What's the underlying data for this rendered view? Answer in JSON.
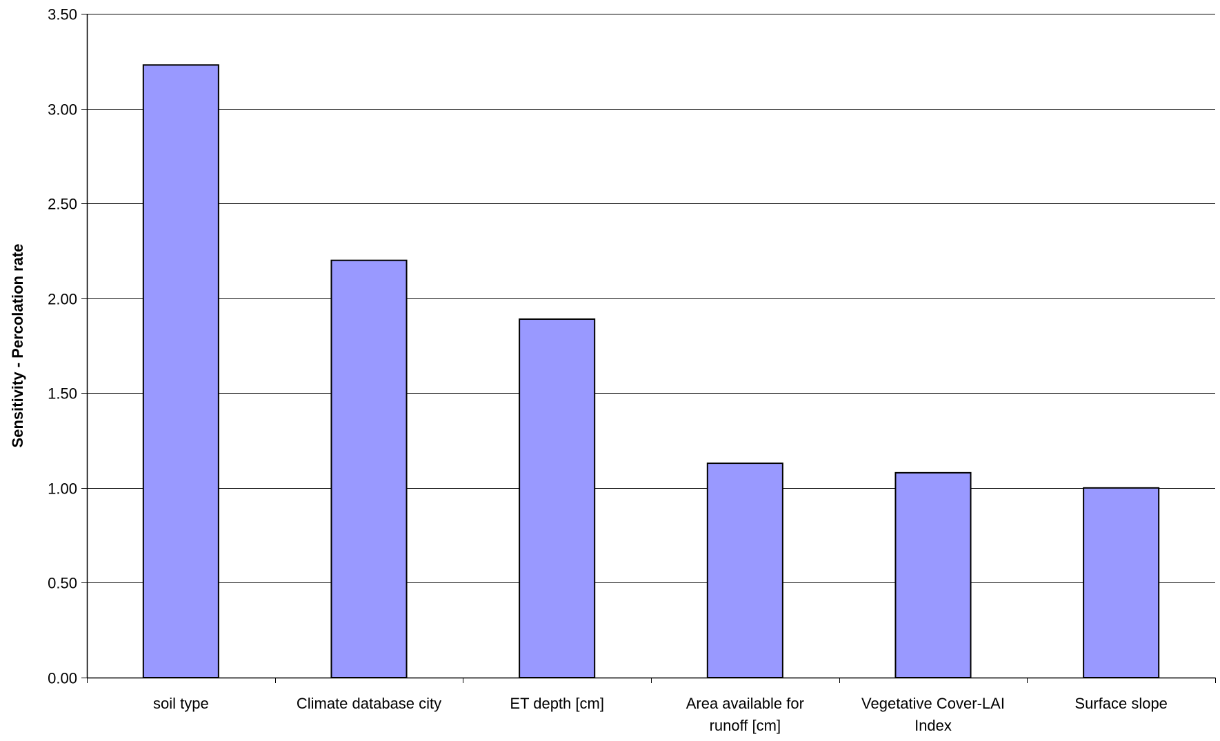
{
  "chart_data": {
    "type": "bar",
    "title": "",
    "xlabel": "",
    "ylabel": "Sensitivity - Percolation rate",
    "categories": [
      [
        "soil type"
      ],
      [
        "Climate database city"
      ],
      [
        "ET depth [cm]"
      ],
      [
        "Area available for",
        "runoff [cm]"
      ],
      [
        "Vegetative Cover-LAI",
        "Index"
      ],
      [
        "Surface slope"
      ]
    ],
    "values": [
      3.23,
      2.2,
      1.89,
      1.13,
      1.08,
      1.0
    ],
    "ylim": [
      0,
      3.5
    ],
    "yticks": [
      "0.00",
      "0.50",
      "1.00",
      "1.50",
      "2.00",
      "2.50",
      "3.00",
      "3.50"
    ],
    "grid": true,
    "legend": "none",
    "colors": {
      "bar_fill": "#9999ff",
      "bar_stroke": "#000000",
      "grid": "#000000",
      "axis": "#000000"
    }
  }
}
